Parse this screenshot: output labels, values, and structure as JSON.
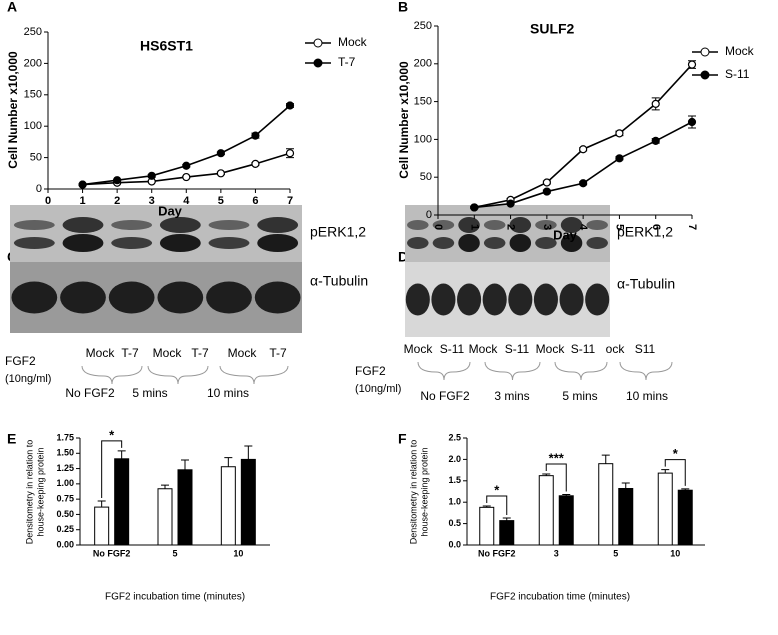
{
  "chart_data": [
    {
      "type": "line",
      "label": "A",
      "title": "HS6ST1",
      "xlabel": "Day",
      "ylabel": "Cell Number x10,000",
      "x": [
        1,
        2,
        3,
        4,
        5,
        6,
        7
      ],
      "xlim": [
        0,
        7
      ],
      "xticks": [
        0,
        1,
        2,
        3,
        4,
        5,
        6,
        7
      ],
      "ylim": [
        0,
        250
      ],
      "yticks": [
        0,
        50,
        100,
        150,
        200,
        250
      ],
      "series": [
        {
          "name": "Mock",
          "color": "#000000",
          "marker_fill": "#ffffff",
          "values": [
            7,
            10,
            12,
            19,
            25,
            40,
            57
          ],
          "errors": [
            1,
            1,
            1,
            1,
            2,
            2,
            7
          ]
        },
        {
          "name": "T-7",
          "color": "#000000",
          "marker_fill": "#000000",
          "values": [
            7,
            14,
            21,
            37,
            57,
            85,
            133
          ],
          "errors": [
            1,
            1,
            2,
            2,
            2,
            4,
            3
          ]
        }
      ]
    },
    {
      "type": "line",
      "label": "B",
      "title": "SULF2",
      "xlabel": "Day",
      "ylabel": "Cell Number x10,000",
      "xtick_rotation": 90,
      "x": [
        1,
        2,
        3,
        4,
        5,
        6,
        7
      ],
      "xlim": [
        0,
        7
      ],
      "xticks": [
        0,
        1,
        2,
        3,
        4,
        5,
        6,
        7
      ],
      "ylim": [
        0,
        250
      ],
      "yticks": [
        0,
        50,
        100,
        150,
        200,
        250
      ],
      "series": [
        {
          "name": "Mock",
          "color": "#000000",
          "marker_fill": "#ffffff",
          "values": [
            10,
            20,
            43,
            87,
            108,
            147,
            199
          ],
          "errors": [
            1,
            2,
            2,
            2,
            3,
            8,
            5
          ]
        },
        {
          "name": "S-11",
          "color": "#000000",
          "marker_fill": "#000000",
          "values": [
            10,
            15,
            31,
            42,
            75,
            98,
            123
          ],
          "errors": [
            1,
            1,
            2,
            2,
            2,
            3,
            8
          ]
        }
      ]
    },
    {
      "type": "bar",
      "label": "E",
      "xlabel": "FGF2 incubation time (minutes)",
      "ylabel": [
        "Densitometry in relation to",
        "house-keeping protein"
      ],
      "categories": [
        "No FGF2",
        "5",
        "10"
      ],
      "ylim": [
        0,
        1.75
      ],
      "yticks": [
        {
          "value": 0,
          "label": "0.00"
        },
        0.25,
        {
          "value": 0.5,
          "label": "0.50"
        },
        0.75,
        {
          "value": 1,
          "label": "1.00"
        },
        1.25,
        {
          "value": 1.5,
          "label": "1.50"
        },
        1.75
      ],
      "series": [
        {
          "color": "#ffffff",
          "values": [
            0.62,
            0.92,
            1.28
          ],
          "errors": [
            0.1,
            0.06,
            0.15
          ]
        },
        {
          "color": "#000000",
          "values": [
            1.41,
            1.23,
            1.4
          ],
          "errors": [
            0.13,
            0.16,
            0.22
          ]
        }
      ],
      "annotations": [
        "*"
      ]
    },
    {
      "type": "bar",
      "label": "F",
      "xlabel": "FGF2 incubation time (minutes)",
      "ylabel": [
        "Densitometry in relation to",
        "house-keeping protein"
      ],
      "categories": [
        "No FGF2",
        "3",
        "5",
        "10"
      ],
      "ylim": [
        0,
        2.5
      ],
      "yticks": [
        {
          "value": 0,
          "label": "0.0"
        },
        0.5,
        {
          "value": 1,
          "label": "1.0"
        },
        1.5,
        {
          "value": 2,
          "label": "2.0"
        },
        2.5
      ],
      "series": [
        {
          "color": "#ffffff",
          "values": [
            0.88,
            1.62,
            1.9,
            1.68
          ],
          "errors": [
            0.03,
            0.04,
            0.2,
            0.08
          ]
        },
        {
          "color": "#000000",
          "values": [
            0.57,
            1.15,
            1.32,
            1.28
          ],
          "errors": [
            0.06,
            0.03,
            0.13,
            0.03
          ]
        }
      ],
      "annotations": [
        "*",
        "***",
        "*"
      ]
    }
  ],
  "blots": [
    {
      "label": "C",
      "bands": [
        "pERK1,2",
        "α-Tubulin"
      ],
      "lanes": [
        "Mock",
        "T-7",
        "Mock",
        "T-7",
        "Mock",
        "T-7"
      ],
      "treatment": [
        "FGF2",
        "(10ng/ml)"
      ],
      "groups": [
        "No FGF2",
        "5 mins",
        "10 mins"
      ]
    },
    {
      "label": "D",
      "bands": [
        "pERK1,2",
        "α-Tubulin"
      ],
      "lanes": [
        "Mock",
        "S-11",
        "Mock",
        "S-11",
        "Mock",
        "S-11",
        "ock",
        "S11"
      ],
      "treatment": [
        "FGF2",
        "(10ng/ml)"
      ],
      "groups": [
        "No FGF2",
        "3 mins",
        "5 mins",
        "10 mins"
      ]
    }
  ]
}
